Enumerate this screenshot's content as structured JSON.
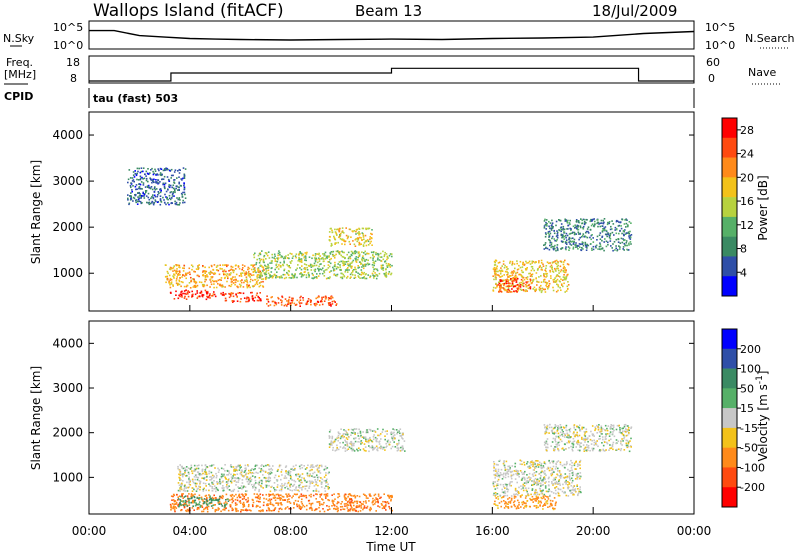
{
  "header": {
    "station": "Wallops Island (fitACF)",
    "beam": "Beam 13",
    "date": "18/Jul/2009"
  },
  "strips": {
    "nsky_label": "N.Sky",
    "nsearch_label": "N.Search",
    "freq_label_top": "Freq.",
    "freq_label_unit": "[MHz]",
    "nave_label": "Nave",
    "cpid_label": "CPID",
    "cpid_value": "tau (fast) 503",
    "noise_left_ticks": [
      "10^5",
      "10^0"
    ],
    "noise_right_ticks": [
      "10^5",
      "10^0"
    ],
    "freq_left_ticks": [
      "18",
      "8"
    ],
    "nave_right_ticks": [
      "60",
      "0"
    ]
  },
  "colors": {
    "power_scale": [
      "#0000ff",
      "#2f4fa8",
      "#3a8a63",
      "#56b068",
      "#b7d23f",
      "#f3c21a",
      "#ff8a1a",
      "#ff4a10",
      "#ff0000"
    ],
    "velocity_scale": [
      "#0000ff",
      "#2f4fa8",
      "#3a8a63",
      "#56b068",
      "#c7c7c7",
      "#f3c21a",
      "#ff8a1a",
      "#ff4a10",
      "#ff0000"
    ]
  },
  "chart_data": [
    {
      "type": "line",
      "panel": "noise",
      "ylabel": "N.Sky",
      "ylabel_right": "N.Search",
      "y_scale": "log",
      "x_range": [
        "00:00",
        "24:00"
      ],
      "ylim": [
        1,
        100000
      ],
      "series": [
        {
          "x": [
            0,
            1,
            2,
            3,
            4,
            5,
            6,
            8,
            10,
            12,
            14,
            16,
            18,
            20,
            22,
            24
          ],
          "values": [
            3000,
            3000,
            300,
            150,
            80,
            60,
            50,
            40,
            50,
            60,
            50,
            80,
            100,
            150,
            800,
            2000
          ]
        }
      ]
    },
    {
      "type": "line",
      "panel": "frequency",
      "ylabel": "Freq. [MHz]",
      "ylabel_right": "Nave",
      "x_range": [
        "00:00",
        "24:00"
      ],
      "ylim": [
        8,
        18
      ],
      "ylim_right": [
        0,
        60
      ],
      "series": [
        {
          "x": [
            0,
            3.25,
            3.25,
            12.0,
            12.0,
            21.8,
            21.8,
            24
          ],
          "values": [
            8,
            8,
            11.5,
            11.5,
            13.5,
            13.5,
            8,
            8
          ]
        }
      ]
    },
    {
      "type": "heatmap",
      "panel": "power",
      "ylabel": "Slant Range [km]",
      "colorbar_label": "Power [dB]",
      "colorbar_ticks": [
        4,
        8,
        12,
        16,
        20,
        24,
        28
      ],
      "colorbar_range": [
        0,
        30
      ],
      "ylim": [
        180,
        4500
      ],
      "yticks": [
        1000,
        2000,
        3000,
        4000
      ],
      "regions": [
        {
          "t0": 3.2,
          "t1": 5.0,
          "r0": 450,
          "r1": 650,
          "value": 27
        },
        {
          "t0": 5.2,
          "t1": 6.8,
          "r0": 380,
          "r1": 600,
          "value": 26
        },
        {
          "t0": 7.0,
          "t1": 9.8,
          "r0": 300,
          "r1": 520,
          "value": 24
        },
        {
          "t0": 3.0,
          "t1": 7.0,
          "r0": 700,
          "r1": 1200,
          "value": 20
        },
        {
          "t0": 6.5,
          "t1": 12.0,
          "r0": 900,
          "r1": 1500,
          "value": 14
        },
        {
          "t0": 9.5,
          "t1": 11.2,
          "r0": 1600,
          "r1": 2000,
          "value": 17
        },
        {
          "t0": 16.0,
          "t1": 19.0,
          "r0": 600,
          "r1": 1300,
          "value": 18
        },
        {
          "t0": 16.2,
          "t1": 17.5,
          "r0": 600,
          "r1": 900,
          "value": 26
        },
        {
          "t0": 18.0,
          "t1": 21.5,
          "r0": 1500,
          "r1": 2200,
          "value": 8
        },
        {
          "t0": 1.5,
          "t1": 3.8,
          "r0": 2500,
          "r1": 3300,
          "value": 6
        }
      ]
    },
    {
      "type": "heatmap",
      "panel": "velocity",
      "xlabel": "Time UT",
      "ylabel": "Slant Range [km]",
      "colorbar_label": "Velocity [m s^-1]",
      "colorbar_ticks": [
        200,
        100,
        50,
        15,
        -15,
        -50,
        -100,
        -200
      ],
      "ylim": [
        180,
        4500
      ],
      "yticks": [
        1000,
        2000,
        3000,
        4000
      ],
      "xticks": [
        "00:00",
        "04:00",
        "08:00",
        "12:00",
        "16:00",
        "20:00",
        "00:00"
      ],
      "regions": [
        {
          "t0": 3.5,
          "t1": 9.5,
          "r0": 700,
          "r1": 1300,
          "value": 0
        },
        {
          "t0": 9.5,
          "t1": 12.5,
          "r0": 1600,
          "r1": 2100,
          "value": 0
        },
        {
          "t0": 16.0,
          "t1": 19.5,
          "r0": 600,
          "r1": 1400,
          "value": 0
        },
        {
          "t0": 3.2,
          "t1": 12.0,
          "r0": 250,
          "r1": 650,
          "value": -60
        },
        {
          "t0": 3.5,
          "t1": 5.5,
          "r0": 350,
          "r1": 600,
          "value": 40
        },
        {
          "t0": 16.0,
          "t1": 18.5,
          "r0": 300,
          "r1": 600,
          "value": -45
        },
        {
          "t0": 18.0,
          "t1": 21.5,
          "r0": 1600,
          "r1": 2200,
          "value": 0
        }
      ]
    }
  ]
}
